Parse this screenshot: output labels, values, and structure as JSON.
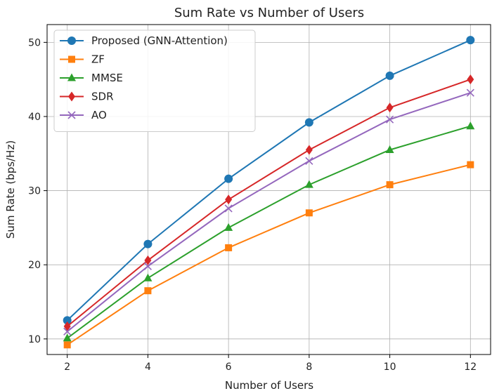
{
  "chart_data": {
    "type": "line",
    "title": "Sum Rate vs Number of Users",
    "xlabel": "Number of Users",
    "ylabel": "Sum Rate (bps/Hz)",
    "x": [
      2,
      4,
      6,
      8,
      10,
      12
    ],
    "xticks": [
      "2",
      "4",
      "6",
      "8",
      "10",
      "12"
    ],
    "yticks": [
      "10",
      "20",
      "30",
      "40",
      "50"
    ],
    "xlim": [
      1.5,
      12.5
    ],
    "ylim": [
      7.9,
      52.4
    ],
    "grid": true,
    "legend_position": "top-left",
    "series": [
      {
        "name": "Proposed (GNN-Attention)",
        "color": "#1f77b4",
        "marker": "circle",
        "values": [
          12.5,
          22.8,
          31.6,
          39.2,
          45.5,
          50.3
        ]
      },
      {
        "name": "ZF",
        "color": "#ff7f0e",
        "marker": "square",
        "values": [
          9.2,
          16.5,
          22.3,
          27.0,
          30.8,
          33.5
        ]
      },
      {
        "name": "MMSE",
        "color": "#2ca02c",
        "marker": "triangle",
        "values": [
          10.1,
          18.2,
          25.0,
          30.8,
          35.5,
          38.7
        ]
      },
      {
        "name": "SDR",
        "color": "#d62728",
        "marker": "diamond",
        "values": [
          11.7,
          20.6,
          28.8,
          35.5,
          41.2,
          45.0
        ]
      },
      {
        "name": "AO",
        "color": "#9467bd",
        "marker": "x",
        "values": [
          11.0,
          19.8,
          27.6,
          34.0,
          39.6,
          43.2
        ]
      }
    ]
  }
}
